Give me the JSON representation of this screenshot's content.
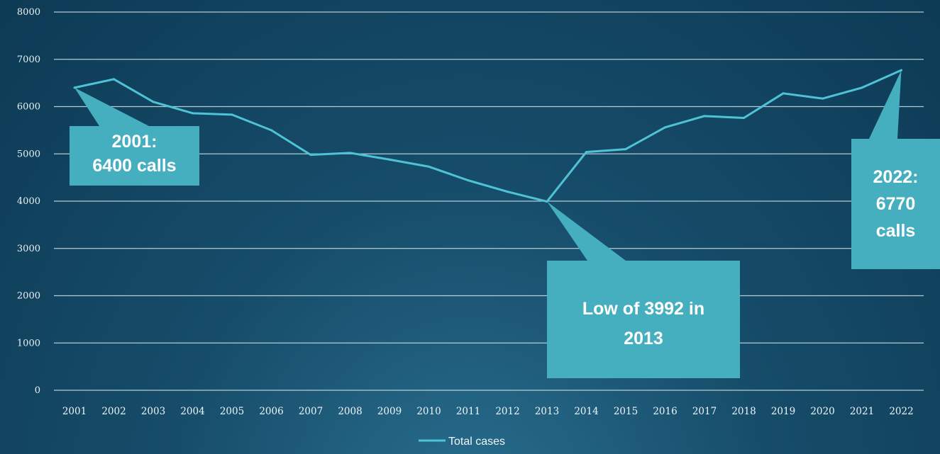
{
  "chart_data": {
    "type": "line",
    "title": "",
    "xlabel": "",
    "ylabel": "",
    "categories": [
      "2001",
      "2002",
      "2003",
      "2004",
      "2005",
      "2006",
      "2007",
      "2008",
      "2009",
      "2010",
      "2011",
      "2012",
      "2013",
      "2014",
      "2015",
      "2016",
      "2017",
      "2018",
      "2019",
      "2020",
      "2021",
      "2022"
    ],
    "y_ticks": [
      "0",
      "1000",
      "2000",
      "3000",
      "4000",
      "5000",
      "6000",
      "7000",
      "8000"
    ],
    "ylim": [
      0,
      8000
    ],
    "grid": true,
    "legend_position": "bottom",
    "series": [
      {
        "name": "Total cases",
        "values": [
          6400,
          6580,
          6100,
          5860,
          5830,
          5500,
          4980,
          5020,
          4880,
          4730,
          4440,
          4200,
          3992,
          5040,
          5100,
          5560,
          5800,
          5760,
          6280,
          6170,
          6400,
          6770
        ]
      }
    ],
    "annotations": [
      {
        "lines": [
          "2001:",
          "6400 calls"
        ],
        "category": "2001",
        "value": 6400
      },
      {
        "lines": [
          "Low of 3992 in",
          "2013"
        ],
        "category": "2013",
        "value": 3992
      },
      {
        "lines": [
          "2022:",
          "6770",
          "calls"
        ],
        "category": "2022",
        "value": 6770
      }
    ]
  },
  "colors": {
    "line": "#4fc3d6",
    "grid": "#cfe3ec",
    "callout": "#45aebf",
    "callout_text": "#ffffff"
  }
}
